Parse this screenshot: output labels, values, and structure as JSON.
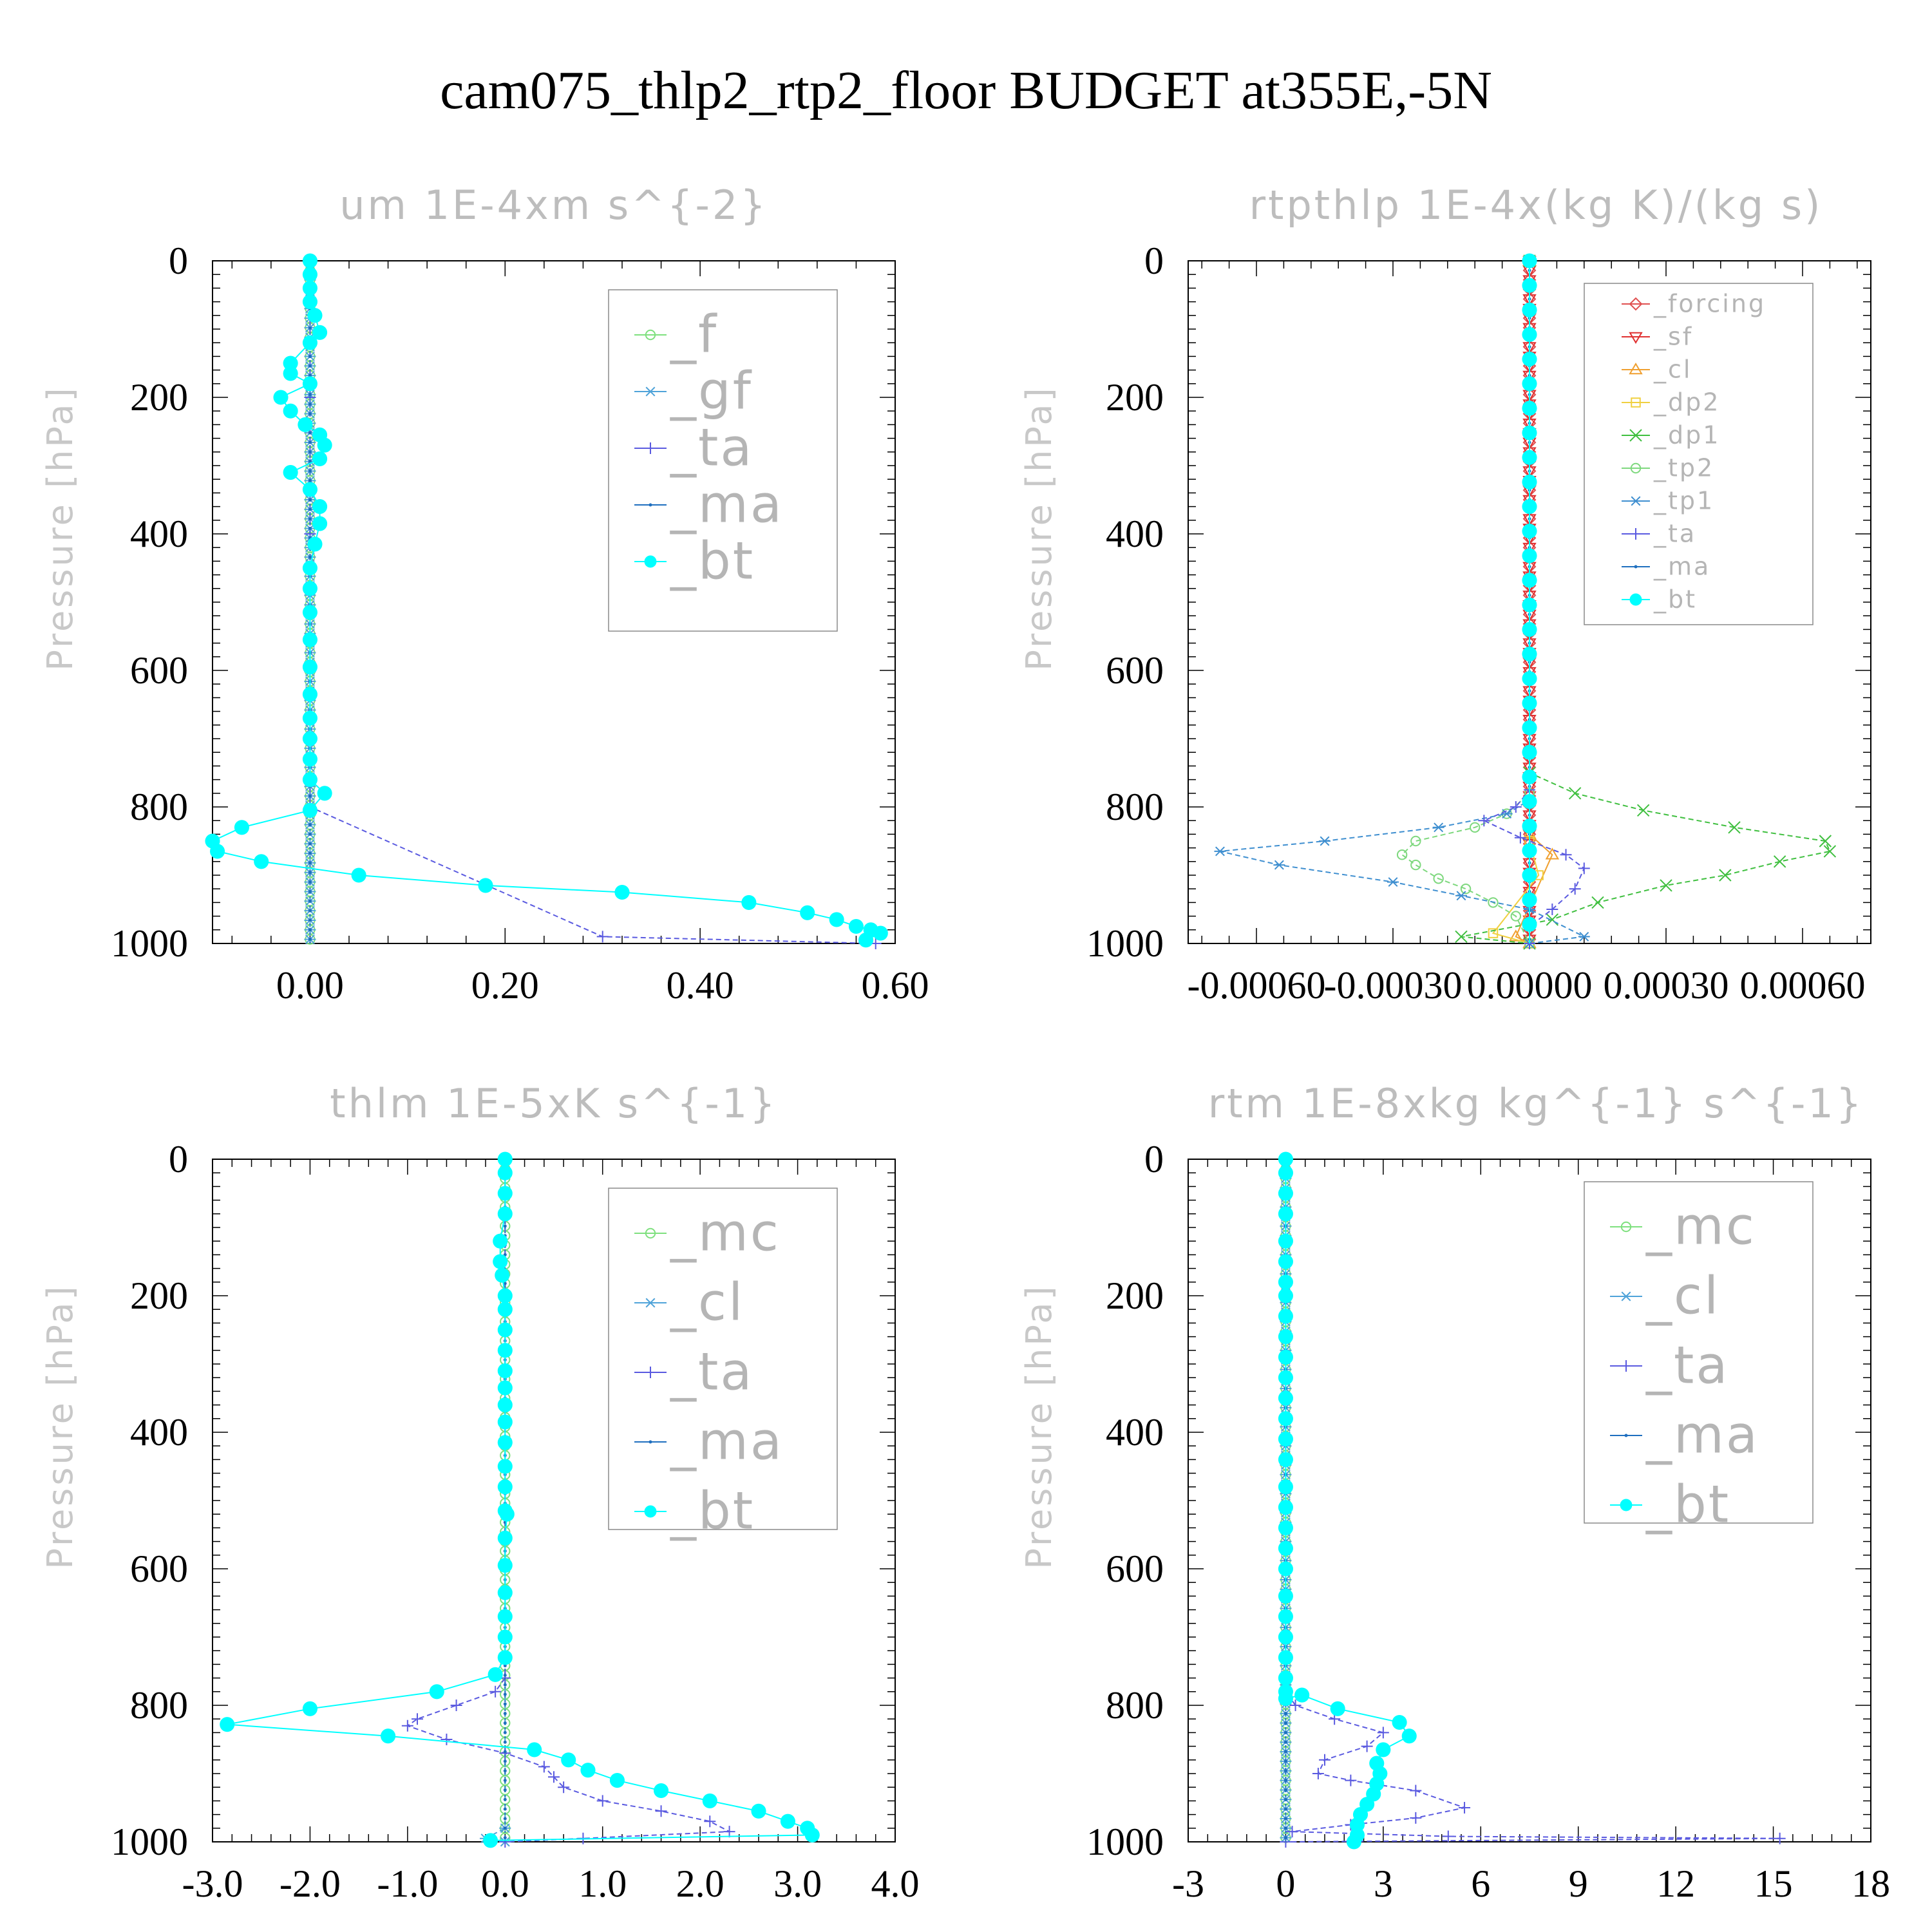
{
  "figure": {
    "title": "cam075_thlp2_rtp2_floor  BUDGET at355E,-5N"
  },
  "chart_data": [
    {
      "type": "line",
      "title": "um  1E-4xm s^{-2}",
      "ylabel": "Pressure [hPa]",
      "xlim": [
        -0.1,
        0.6
      ],
      "ylim": [
        1000,
        0
      ],
      "y_inverted": true,
      "xticks": [
        "0.00",
        "0.20",
        "0.40",
        "0.60"
      ],
      "xtick_values": [
        0,
        0.2,
        0.4,
        0.6
      ],
      "yticks": [
        "0",
        "200",
        "400",
        "600",
        "800",
        "1000"
      ],
      "legend_position": "top-right",
      "series": [
        {
          "name": "_f",
          "color": "#7ee07e",
          "marker": "circle-open",
          "x": [
            0,
            0,
            0,
            0,
            0,
            0,
            0,
            0,
            0,
            0,
            0,
            0,
            0
          ],
          "y": [
            0,
            100,
            200,
            300,
            400,
            500,
            600,
            700,
            800,
            850,
            900,
            950,
            1000
          ]
        },
        {
          "name": "_gf",
          "color": "#4fa3d9",
          "marker": "asterisk",
          "x": [
            0,
            0,
            0,
            0,
            0,
            0,
            0,
            0,
            0,
            0,
            0,
            0,
            0
          ],
          "y": [
            0,
            100,
            200,
            300,
            400,
            500,
            600,
            700,
            800,
            850,
            900,
            950,
            1000
          ]
        },
        {
          "name": "_ta",
          "color": "#5a5ae0",
          "marker": "plus",
          "x": [
            0,
            0,
            0,
            0,
            0,
            0.3,
            0.58
          ],
          "y": [
            0,
            200,
            400,
            600,
            800,
            990,
            1000
          ]
        },
        {
          "name": "_ma",
          "color": "#1f6fbf",
          "marker": "dot",
          "x": [
            0,
            0,
            0,
            0,
            0,
            0,
            0
          ],
          "y": [
            0,
            200,
            400,
            600,
            800,
            900,
            1000
          ]
        },
        {
          "name": "_bt",
          "color": "#00ffff",
          "marker": "dot-filled",
          "x": [
            0,
            0,
            0,
            0,
            0.005,
            0.01,
            0.0,
            -0.02,
            -0.02,
            0.0,
            -0.03,
            -0.02,
            -0.005,
            0.01,
            0.015,
            0.01,
            -0.02,
            0.0,
            0.01,
            0.01,
            0.005,
            0.0,
            0.0,
            0.0,
            0.0,
            0.0,
            0.0,
            0.0,
            0.0,
            0.0,
            0.0,
            0.015,
            0.0,
            -0.07,
            -0.1,
            -0.095,
            -0.05,
            0.05,
            0.18,
            0.32,
            0.45,
            0.51,
            0.54,
            0.56,
            0.575,
            0.585,
            0.57
          ],
          "y": [
            0,
            20,
            40,
            60,
            80,
            105,
            120,
            150,
            165,
            180,
            200,
            220,
            240,
            255,
            270,
            290,
            310,
            335,
            360,
            385,
            415,
            450,
            480,
            515,
            555,
            595,
            635,
            670,
            700,
            730,
            760,
            780,
            805,
            830,
            850,
            865,
            880,
            900,
            915,
            925,
            940,
            955,
            965,
            975,
            980,
            985,
            995
          ]
        }
      ]
    },
    {
      "type": "line",
      "title": "rtpthlp  1E-4x(kg K)/(kg s)",
      "ylabel": "Pressure [hPa]",
      "xlim": [
        -0.00075,
        0.00075
      ],
      "ylim": [
        1000,
        0
      ],
      "y_inverted": true,
      "xticks": [
        "-0.00060",
        "-0.00030",
        "0.00000",
        "0.00030",
        "0.00060"
      ],
      "xtick_values": [
        -0.0006,
        -0.0003,
        0,
        0.0003,
        0.0006
      ],
      "yticks": [
        "0",
        "200",
        "400",
        "600",
        "800",
        "1000"
      ],
      "legend_position": "top-right",
      "series": [
        {
          "name": "_forcing",
          "color": "#e05050",
          "marker": "diamond-open",
          "x": [
            0,
            0
          ],
          "y": [
            0,
            1000
          ]
        },
        {
          "name": "_sf",
          "color": "#e03030",
          "marker": "triangle-down-open",
          "x": [
            0,
            0
          ],
          "y": [
            0,
            1000
          ]
        },
        {
          "name": "_cl",
          "color": "#f0a030",
          "marker": "triangle-up-open",
          "x": [
            0,
            0,
            5e-05,
            -3e-05,
            0
          ],
          "y": [
            0,
            840,
            870,
            990,
            1000
          ]
        },
        {
          "name": "_dp2",
          "color": "#f0d040",
          "marker": "square-open",
          "x": [
            0,
            0,
            2e-05,
            -8e-05,
            0
          ],
          "y": [
            0,
            850,
            900,
            985,
            1000
          ]
        },
        {
          "name": "_dp1",
          "color": "#3fbf3f",
          "marker": "cross",
          "x": [
            0,
            0,
            0.0001,
            0.00025,
            0.00045,
            0.00065,
            0.00066,
            0.00055,
            0.00043,
            0.0003,
            0.00015,
            5e-05,
            -0.00015,
            0
          ],
          "y": [
            0,
            750,
            780,
            805,
            830,
            850,
            865,
            880,
            900,
            915,
            940,
            965,
            990,
            1000
          ]
        },
        {
          "name": "_tp2",
          "color": "#7ed87e",
          "marker": "circle-open",
          "x": [
            0,
            0,
            -5e-05,
            -0.00012,
            -0.00025,
            -0.00028,
            -0.00025,
            -0.0002,
            -0.00014,
            -8e-05,
            -3e-05,
            0
          ],
          "y": [
            0,
            780,
            810,
            830,
            850,
            870,
            885,
            905,
            920,
            940,
            960,
            1000
          ]
        },
        {
          "name": "_tp1",
          "color": "#3f8fd0",
          "marker": "asterisk",
          "x": [
            0,
            0,
            -5e-05,
            -0.0002,
            -0.00045,
            -0.00068,
            -0.00055,
            -0.0003,
            -0.00015,
            0.0,
            0.00012,
            0
          ],
          "y": [
            0,
            790,
            810,
            830,
            850,
            865,
            885,
            910,
            930,
            950,
            990,
            1000
          ]
        },
        {
          "name": "_ta",
          "color": "#5a5ae0",
          "marker": "plus",
          "x": [
            0,
            0,
            -3e-05,
            -0.0001,
            -2e-05,
            8e-05,
            0.00012,
            0.0001,
            5e-05,
            0.0,
            0.0
          ],
          "y": [
            0,
            775,
            800,
            820,
            845,
            870,
            890,
            920,
            950,
            975,
            1000
          ]
        },
        {
          "name": "_ma",
          "color": "#1f6fbf",
          "marker": "dot",
          "x": [
            0,
            0
          ],
          "y": [
            0,
            1000
          ]
        },
        {
          "name": "_bt",
          "color": "#00ffff",
          "marker": "dot-filled",
          "x": [
            0,
            0,
            0,
            0,
            0,
            0,
            0,
            0,
            0,
            0,
            0,
            0,
            0,
            0,
            0,
            0,
            0,
            0,
            0,
            0,
            0,
            0,
            0,
            0,
            0,
            0,
            0
          ],
          "y": [
            0,
            40,
            80,
            120,
            160,
            200,
            240,
            280,
            320,
            360,
            400,
            440,
            480,
            520,
            560,
            600,
            640,
            680,
            720,
            760,
            800,
            840,
            880,
            920,
            950,
            980,
            1000
          ]
        }
      ]
    },
    {
      "type": "line",
      "title": "thlm  1E-5xK s^{-1}",
      "ylabel": "Pressure [hPa]",
      "xlim": [
        -3,
        4
      ],
      "ylim": [
        1000,
        0
      ],
      "y_inverted": true,
      "xticks": [
        "-3.0",
        "-2.0",
        "-1.0",
        "0.0",
        "1.0",
        "2.0",
        "3.0",
        "4.0"
      ],
      "xtick_values": [
        -3,
        -2,
        -1,
        0,
        1,
        2,
        3,
        4
      ],
      "yticks": [
        "0",
        "200",
        "400",
        "600",
        "800",
        "1000"
      ],
      "legend_position": "top-right",
      "series": [
        {
          "name": "_mc",
          "color": "#7ee07e",
          "marker": "circle-open",
          "x": [
            0,
            0
          ],
          "y": [
            0,
            1000
          ]
        },
        {
          "name": "_cl",
          "color": "#4fa3d9",
          "marker": "asterisk",
          "x": [
            0,
            0,
            -0.2,
            0
          ],
          "y": [
            0,
            980,
            995,
            1000
          ]
        },
        {
          "name": "_ta",
          "color": "#5a5ae0",
          "marker": "plus",
          "x": [
            0,
            0,
            -0.1,
            -0.5,
            -0.9,
            -1.0,
            -0.6,
            0.0,
            0.4,
            0.5,
            0.6,
            1.0,
            1.6,
            2.1,
            2.3,
            0.8,
            0
          ],
          "y": [
            0,
            760,
            780,
            800,
            820,
            830,
            850,
            870,
            890,
            905,
            920,
            940,
            955,
            970,
            985,
            995,
            1000
          ]
        },
        {
          "name": "_ma",
          "color": "#1f6fbf",
          "marker": "dot",
          "x": [
            0,
            0
          ],
          "y": [
            0,
            1000
          ]
        },
        {
          "name": "_bt",
          "color": "#00ffff",
          "marker": "dot-filled",
          "x": [
            0,
            0,
            0,
            0,
            -0.05,
            -0.05,
            -0.03,
            0,
            0,
            0,
            0,
            0,
            0,
            0,
            0,
            0,
            0,
            0,
            0,
            0.02,
            0,
            0,
            0,
            0,
            0,
            0,
            -0.1,
            -0.7,
            -2.0,
            -2.85,
            -1.2,
            0.3,
            0.65,
            0.85,
            1.15,
            1.6,
            2.1,
            2.6,
            2.9,
            3.1,
            3.15,
            -0.15
          ],
          "y": [
            0,
            20,
            50,
            80,
            120,
            150,
            170,
            200,
            220,
            250,
            280,
            310,
            335,
            360,
            385,
            415,
            450,
            480,
            515,
            520,
            555,
            595,
            635,
            670,
            700,
            730,
            755,
            780,
            805,
            828,
            845,
            865,
            880,
            895,
            910,
            925,
            940,
            955,
            970,
            980,
            990,
            998
          ]
        }
      ]
    },
    {
      "type": "line",
      "title": "rtm  1E-8xkg kg^{-1} s^{-1}",
      "ylabel": "Pressure [hPa]",
      "xlim": [
        -3,
        18
      ],
      "ylim": [
        1000,
        0
      ],
      "y_inverted": true,
      "xticks": [
        "-3",
        "0",
        "3",
        "6",
        "9",
        "12",
        "15",
        "18"
      ],
      "xtick_values": [
        -3,
        0,
        3,
        6,
        9,
        12,
        15,
        18
      ],
      "yticks": [
        "0",
        "200",
        "400",
        "600",
        "800",
        "1000"
      ],
      "legend_position": "top-right",
      "series": [
        {
          "name": "_mc",
          "color": "#7ee07e",
          "marker": "circle-open",
          "x": [
            0,
            0
          ],
          "y": [
            0,
            1000
          ]
        },
        {
          "name": "_cl",
          "color": "#4fa3d9",
          "marker": "asterisk",
          "x": [
            0,
            0
          ],
          "y": [
            0,
            1000
          ]
        },
        {
          "name": "_ta",
          "color": "#5a5ae0",
          "marker": "plus",
          "x": [
            0,
            0,
            0.3,
            1.5,
            3.0,
            2.5,
            1.2,
            1.0,
            2.0,
            4.0,
            5.5,
            4.0,
            2.0,
            0.2,
            5.0,
            15.2,
            0
          ],
          "y": [
            0,
            780,
            800,
            820,
            840,
            860,
            880,
            900,
            910,
            925,
            950,
            965,
            975,
            985,
            992,
            995,
            1000
          ]
        },
        {
          "name": "_ma",
          "color": "#1f6fbf",
          "marker": "dot",
          "x": [
            0,
            0
          ],
          "y": [
            0,
            1000
          ]
        },
        {
          "name": "_bt",
          "color": "#00ffff",
          "marker": "dot-filled",
          "x": [
            0,
            0,
            0,
            0,
            0,
            0,
            0,
            0,
            0,
            0,
            0,
            0,
            0,
            0,
            0,
            0,
            0,
            0,
            0,
            0,
            0,
            0,
            0,
            0,
            0,
            0,
            0,
            0,
            0.5,
            1.6,
            3.5,
            3.8,
            3.0,
            2.8,
            2.9,
            2.8,
            2.7,
            2.5,
            2.3,
            2.2,
            2.2,
            2.1
          ],
          "y": [
            0,
            20,
            50,
            80,
            120,
            150,
            180,
            200,
            230,
            260,
            290,
            320,
            350,
            380,
            410,
            440,
            480,
            510,
            540,
            570,
            600,
            640,
            670,
            700,
            730,
            760,
            780,
            790,
            785,
            805,
            825,
            845,
            865,
            885,
            900,
            915,
            930,
            945,
            960,
            975,
            990,
            1000
          ]
        }
      ]
    }
  ]
}
